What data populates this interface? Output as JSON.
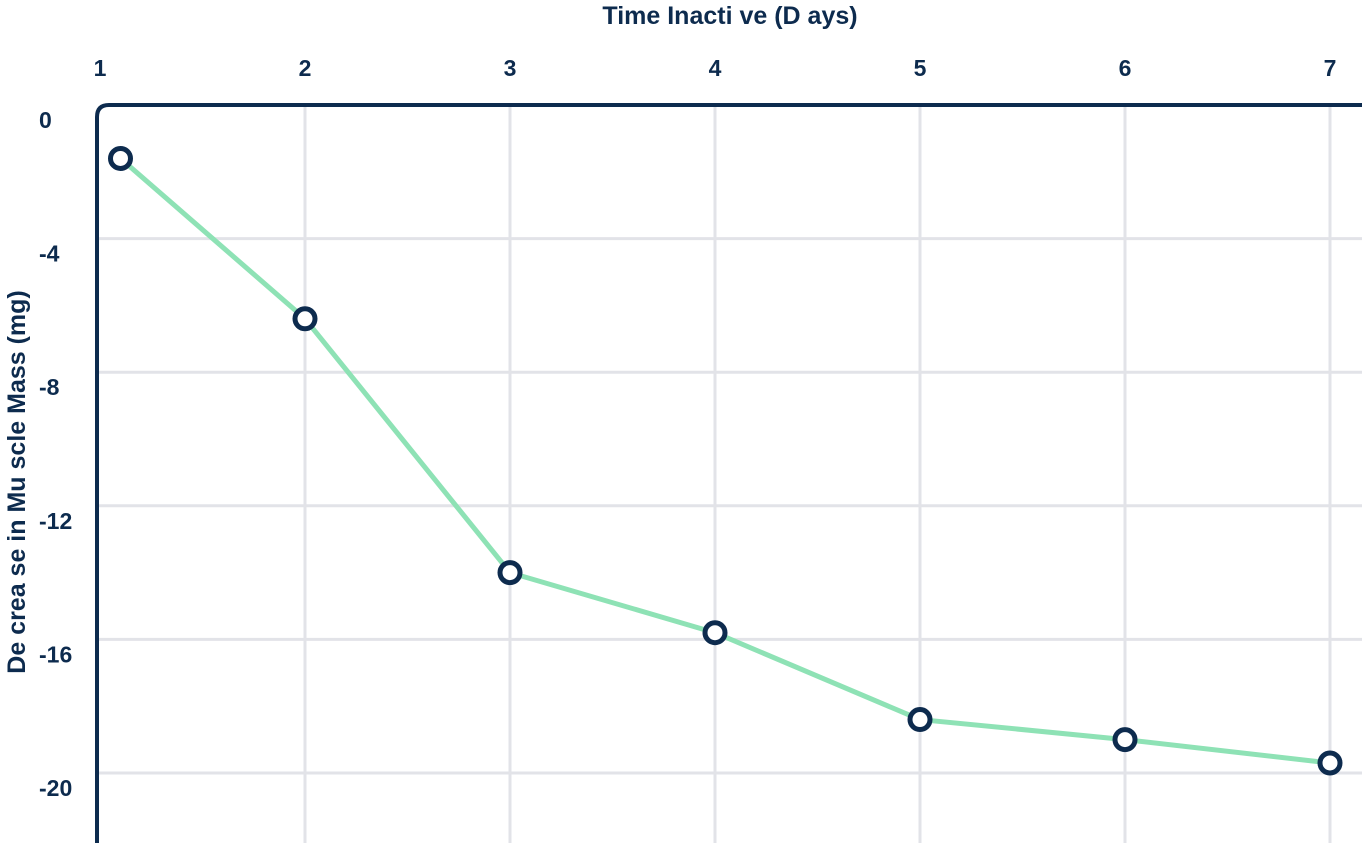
{
  "chart_data": {
    "type": "line",
    "xlabel": "Time Inacti  ve (D ays)",
    "ylabel": "De crea se in Mu  scle Mass (mg)",
    "x_axis_position": "top",
    "x_ticks": [
      "1",
      "2",
      "3",
      "4",
      "5",
      "6",
      "7"
    ],
    "y_ticks": [
      "0",
      "-4",
      "-8",
      "-12",
      "-16",
      "-20"
    ],
    "xlim": [
      1,
      7
    ],
    "ylim": [
      -21,
      0
    ],
    "grid": true,
    "series": [
      {
        "x": [
          1.1,
          2,
          3,
          4,
          5,
          6,
          7
        ],
        "y": [
          -1.6,
          -6.4,
          -14,
          -15.8,
          -18.4,
          -19,
          -19.7
        ]
      }
    ],
    "colors": {
      "line": "#8ee2b5",
      "marker_stroke": "#0d2b4e",
      "marker_fill": "#ffffff",
      "axis": "#0d2b4e",
      "grid": "#e2e3e8",
      "text": "#0d2b4e"
    }
  }
}
